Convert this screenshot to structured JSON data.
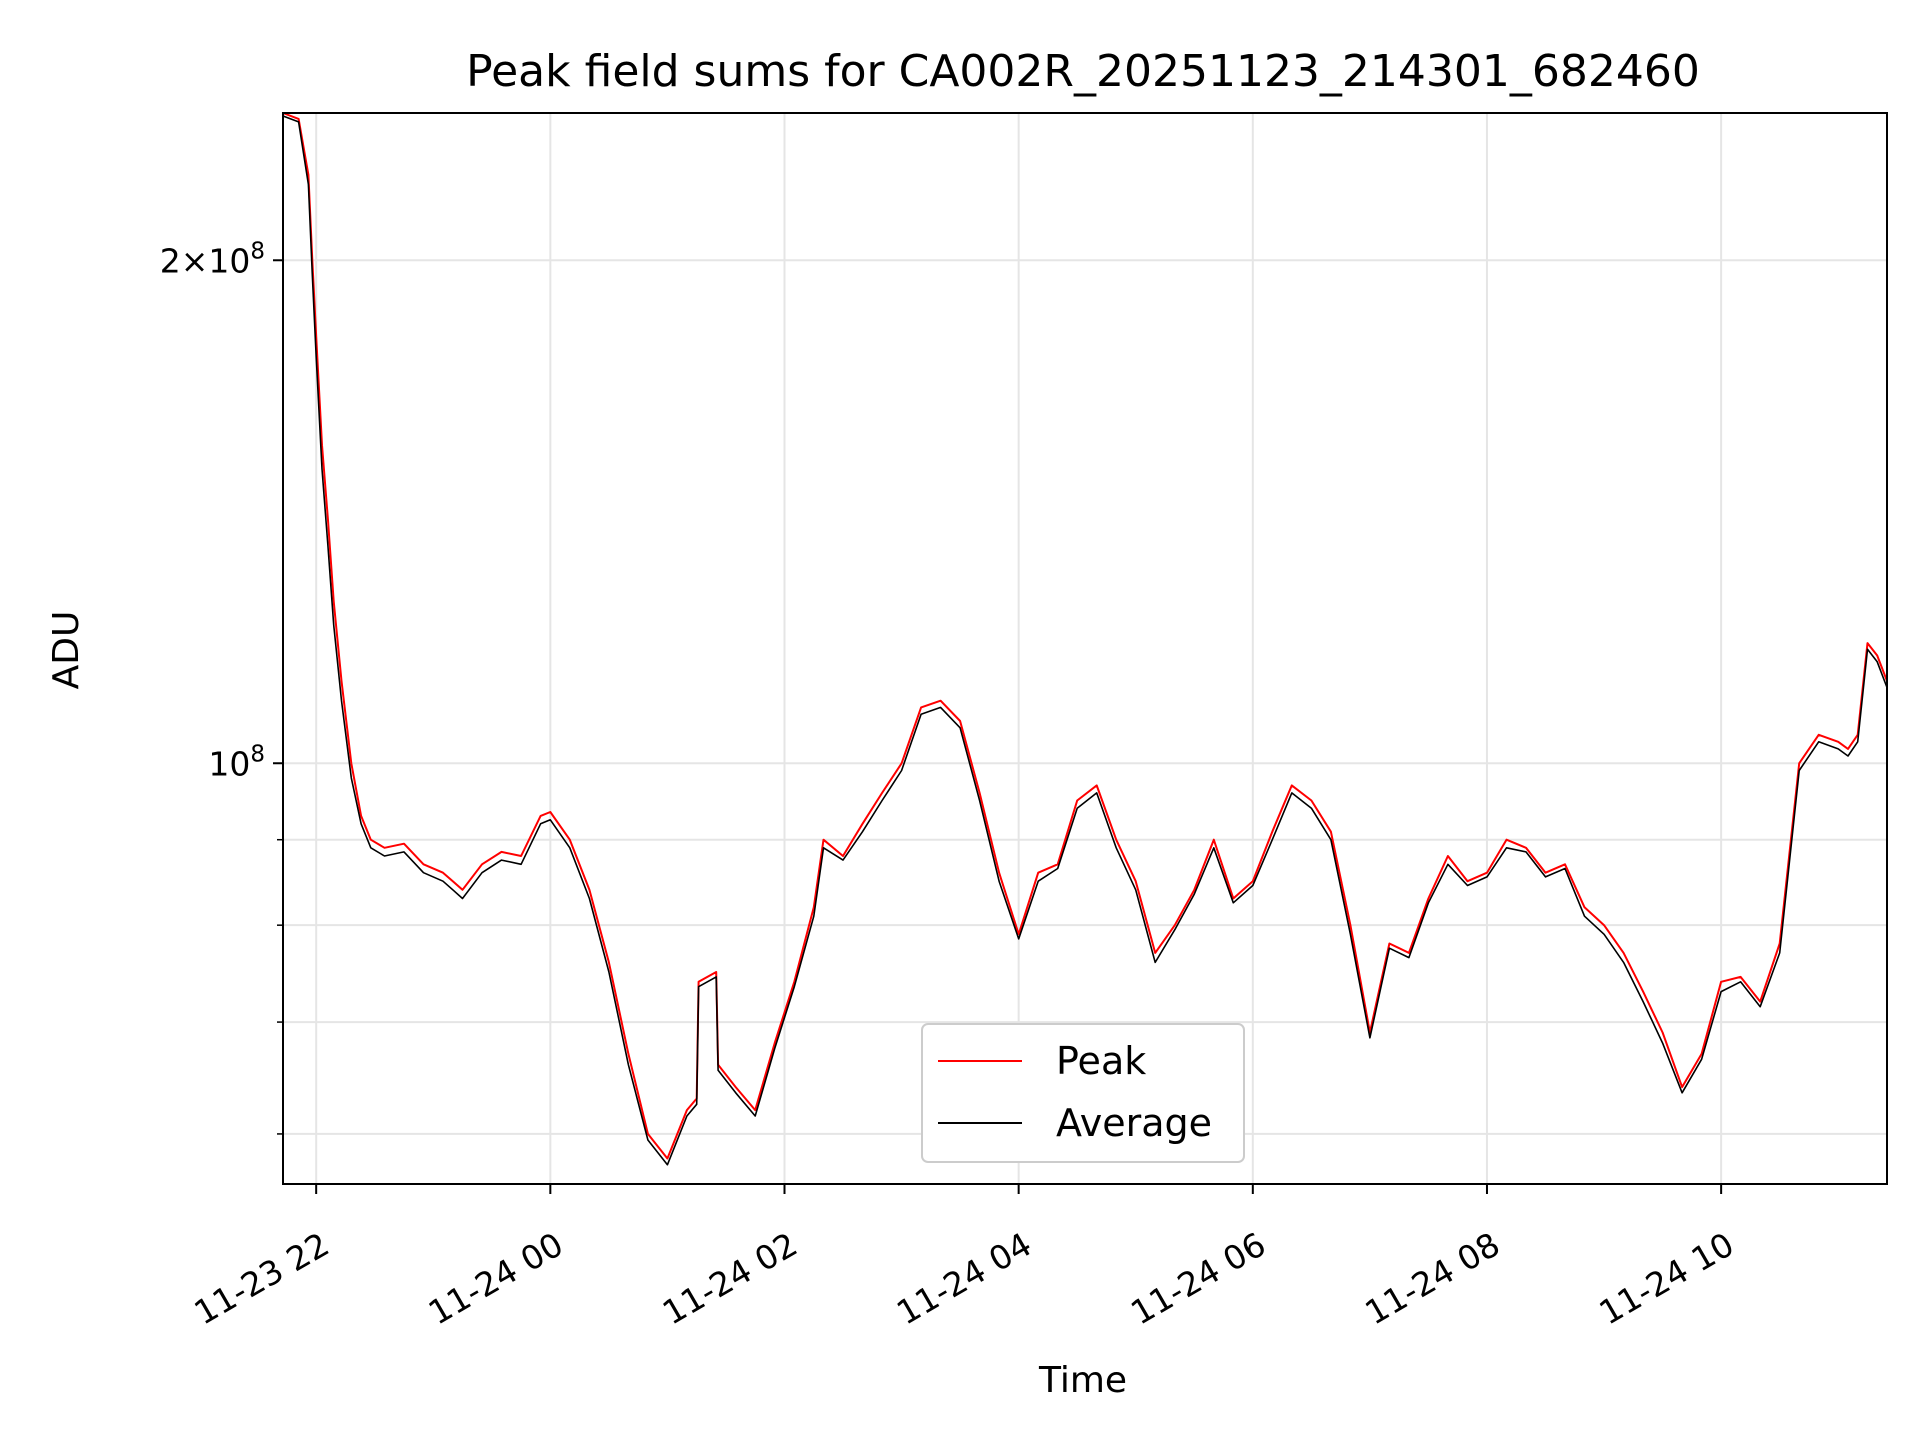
{
  "chart_data": {
    "type": "line",
    "title": "Peak field sums for CA002R_20251123_214301_682460",
    "xlabel": "Time",
    "ylabel": "ADU",
    "y_scale": "log",
    "xlim": [
      "2025-11-23T21:43",
      "2025-11-24T11:25"
    ],
    "ylim": [
      56000000,
      245000000
    ],
    "x_ticks": [
      "11-23 22",
      "11-24 00",
      "11-24 02",
      "11-24 04",
      "11-24 06",
      "11-24 08",
      "11-24 10"
    ],
    "y_ticks": [
      "10^8",
      "2×10^8"
    ],
    "grid": true,
    "legend_position": "lower center",
    "series": [
      {
        "name": "Peak",
        "color": "#ff0000",
        "points": [
          [
            "2025-11-23T21:43",
            245000000
          ],
          [
            "2025-11-23T21:51",
            243000000
          ],
          [
            "2025-11-23T21:56",
            225000000
          ],
          [
            "2025-11-23T21:58",
            200000000
          ],
          [
            "2025-11-23T22:00",
            180000000
          ],
          [
            "2025-11-23T22:03",
            155000000
          ],
          [
            "2025-11-23T22:06",
            140000000
          ],
          [
            "2025-11-23T22:09",
            125000000
          ],
          [
            "2025-11-23T22:13",
            112000000
          ],
          [
            "2025-11-23T22:18",
            100000000
          ],
          [
            "2025-11-23T22:23",
            93000000
          ],
          [
            "2025-11-23T22:28",
            90000000
          ],
          [
            "2025-11-23T22:35",
            89000000
          ],
          [
            "2025-11-23T22:45",
            89500000
          ],
          [
            "2025-11-23T22:55",
            87000000
          ],
          [
            "2025-11-23T23:05",
            86000000
          ],
          [
            "2025-11-23T23:10",
            85000000
          ],
          [
            "2025-11-23T23:15",
            84000000
          ],
          [
            "2025-11-23T23:25",
            87000000
          ],
          [
            "2025-11-23T23:35",
            88500000
          ],
          [
            "2025-11-23T23:45",
            88000000
          ],
          [
            "2025-11-23T23:55",
            93000000
          ],
          [
            "2025-11-24T00:00",
            93500000
          ],
          [
            "2025-11-24T00:10",
            90000000
          ],
          [
            "2025-11-24T00:20",
            84000000
          ],
          [
            "2025-11-24T00:30",
            76000000
          ],
          [
            "2025-11-24T00:40",
            67000000
          ],
          [
            "2025-11-24T00:50",
            60000000
          ],
          [
            "2025-11-24T01:00",
            58000000
          ],
          [
            "2025-11-24T01:10",
            62000000
          ],
          [
            "2025-11-24T01:15",
            63000000
          ],
          [
            "2025-11-24T01:16",
            74000000
          ],
          [
            "2025-11-24T01:25",
            75000000
          ],
          [
            "2025-11-24T01:26",
            66000000
          ],
          [
            "2025-11-24T01:35",
            64000000
          ],
          [
            "2025-11-24T01:45",
            62000000
          ],
          [
            "2025-11-24T01:55",
            68000000
          ],
          [
            "2025-11-24T02:05",
            74000000
          ],
          [
            "2025-11-24T02:15",
            82000000
          ],
          [
            "2025-11-24T02:20",
            90000000
          ],
          [
            "2025-11-24T02:30",
            88000000
          ],
          [
            "2025-11-24T02:40",
            92000000
          ],
          [
            "2025-11-24T02:50",
            96000000
          ],
          [
            "2025-11-24T03:00",
            100000000
          ],
          [
            "2025-11-24T03:10",
            108000000
          ],
          [
            "2025-11-24T03:20",
            109000000
          ],
          [
            "2025-11-24T03:30",
            106000000
          ],
          [
            "2025-11-24T03:40",
            96000000
          ],
          [
            "2025-11-24T03:50",
            86000000
          ],
          [
            "2025-11-24T04:00",
            79000000
          ],
          [
            "2025-11-24T04:10",
            86000000
          ],
          [
            "2025-11-24T04:20",
            87000000
          ],
          [
            "2025-11-24T04:30",
            95000000
          ],
          [
            "2025-11-24T04:40",
            97000000
          ],
          [
            "2025-11-24T04:50",
            90000000
          ],
          [
            "2025-11-24T05:00",
            85000000
          ],
          [
            "2025-11-24T05:10",
            77000000
          ],
          [
            "2025-11-24T05:20",
            80000000
          ],
          [
            "2025-11-24T05:30",
            84000000
          ],
          [
            "2025-11-24T05:40",
            90000000
          ],
          [
            "2025-11-24T05:50",
            83000000
          ],
          [
            "2025-11-24T06:00",
            85000000
          ],
          [
            "2025-11-24T06:10",
            91000000
          ],
          [
            "2025-11-24T06:20",
            97000000
          ],
          [
            "2025-11-24T06:30",
            95000000
          ],
          [
            "2025-11-24T06:40",
            91000000
          ],
          [
            "2025-11-24T06:50",
            80000000
          ],
          [
            "2025-11-24T07:00",
            69000000
          ],
          [
            "2025-11-24T07:10",
            78000000
          ],
          [
            "2025-11-24T07:20",
            77000000
          ],
          [
            "2025-11-24T07:30",
            83000000
          ],
          [
            "2025-11-24T07:40",
            88000000
          ],
          [
            "2025-11-24T07:50",
            85000000
          ],
          [
            "2025-11-24T08:00",
            86000000
          ],
          [
            "2025-11-24T08:10",
            90000000
          ],
          [
            "2025-11-24T08:20",
            89000000
          ],
          [
            "2025-11-24T08:30",
            86000000
          ],
          [
            "2025-11-24T08:40",
            87000000
          ],
          [
            "2025-11-24T08:50",
            82000000
          ],
          [
            "2025-11-24T09:00",
            80000000
          ],
          [
            "2025-11-24T09:10",
            77000000
          ],
          [
            "2025-11-24T09:20",
            73000000
          ],
          [
            "2025-11-24T09:30",
            69000000
          ],
          [
            "2025-11-24T09:40",
            64000000
          ],
          [
            "2025-11-24T09:50",
            67000000
          ],
          [
            "2025-11-24T10:00",
            74000000
          ],
          [
            "2025-11-24T10:10",
            74500000
          ],
          [
            "2025-11-24T10:20",
            72000000
          ],
          [
            "2025-11-24T10:30",
            78000000
          ],
          [
            "2025-11-24T10:40",
            100000000
          ],
          [
            "2025-11-24T10:50",
            104000000
          ],
          [
            "2025-11-24T11:00",
            103000000
          ],
          [
            "2025-11-24T11:05",
            102000000
          ],
          [
            "2025-11-24T11:10",
            104000000
          ],
          [
            "2025-11-24T11:15",
            118000000
          ],
          [
            "2025-11-24T11:20",
            116000000
          ],
          [
            "2025-11-24T11:25",
            112000000
          ]
        ]
      },
      {
        "name": "Average",
        "color": "#000000",
        "points": [
          [
            "2025-11-23T21:43",
            244000000
          ],
          [
            "2025-11-23T21:51",
            242000000
          ],
          [
            "2025-11-23T21:56",
            222000000
          ],
          [
            "2025-11-23T21:58",
            196000000
          ],
          [
            "2025-11-23T22:00",
            175000000
          ],
          [
            "2025-11-23T22:03",
            150000000
          ],
          [
            "2025-11-23T22:06",
            135000000
          ],
          [
            "2025-11-23T22:09",
            121000000
          ],
          [
            "2025-11-23T22:13",
            109000000
          ],
          [
            "2025-11-23T22:18",
            98000000
          ],
          [
            "2025-11-23T22:23",
            92000000
          ],
          [
            "2025-11-23T22:28",
            89000000
          ],
          [
            "2025-11-23T22:35",
            88000000
          ],
          [
            "2025-11-23T22:45",
            88500000
          ],
          [
            "2025-11-23T22:55",
            86000000
          ],
          [
            "2025-11-23T23:05",
            85000000
          ],
          [
            "2025-11-23T23:10",
            84000000
          ],
          [
            "2025-11-23T23:15",
            83000000
          ],
          [
            "2025-11-23T23:25",
            86000000
          ],
          [
            "2025-11-23T23:35",
            87500000
          ],
          [
            "2025-11-23T23:45",
            87000000
          ],
          [
            "2025-11-23T23:55",
            92000000
          ],
          [
            "2025-11-24T00:00",
            92500000
          ],
          [
            "2025-11-24T00:10",
            89000000
          ],
          [
            "2025-11-24T00:20",
            83000000
          ],
          [
            "2025-11-24T00:30",
            75000000
          ],
          [
            "2025-11-24T00:40",
            66000000
          ],
          [
            "2025-11-24T00:50",
            59500000
          ],
          [
            "2025-11-24T01:00",
            57500000
          ],
          [
            "2025-11-24T01:10",
            61500000
          ],
          [
            "2025-11-24T01:15",
            62500000
          ],
          [
            "2025-11-24T01:16",
            73500000
          ],
          [
            "2025-11-24T01:25",
            74500000
          ],
          [
            "2025-11-24T01:26",
            65500000
          ],
          [
            "2025-11-24T01:35",
            63500000
          ],
          [
            "2025-11-24T01:45",
            61500000
          ],
          [
            "2025-11-24T01:55",
            67500000
          ],
          [
            "2025-11-24T02:05",
            73500000
          ],
          [
            "2025-11-24T02:15",
            81000000
          ],
          [
            "2025-11-24T02:20",
            89000000
          ],
          [
            "2025-11-24T02:30",
            87500000
          ],
          [
            "2025-11-24T02:40",
            91000000
          ],
          [
            "2025-11-24T02:50",
            95000000
          ],
          [
            "2025-11-24T03:00",
            99000000
          ],
          [
            "2025-11-24T03:10",
            107000000
          ],
          [
            "2025-11-24T03:20",
            108000000
          ],
          [
            "2025-11-24T03:30",
            105000000
          ],
          [
            "2025-11-24T03:40",
            95000000
          ],
          [
            "2025-11-24T03:50",
            85000000
          ],
          [
            "2025-11-24T04:00",
            78500000
          ],
          [
            "2025-11-24T04:10",
            85000000
          ],
          [
            "2025-11-24T04:20",
            86500000
          ],
          [
            "2025-11-24T04:30",
            94000000
          ],
          [
            "2025-11-24T04:40",
            96000000
          ],
          [
            "2025-11-24T04:50",
            89000000
          ],
          [
            "2025-11-24T05:00",
            84000000
          ],
          [
            "2025-11-24T05:10",
            76000000
          ],
          [
            "2025-11-24T05:20",
            79500000
          ],
          [
            "2025-11-24T05:30",
            83500000
          ],
          [
            "2025-11-24T05:40",
            89000000
          ],
          [
            "2025-11-24T05:50",
            82500000
          ],
          [
            "2025-11-24T06:00",
            84500000
          ],
          [
            "2025-11-24T06:10",
            90000000
          ],
          [
            "2025-11-24T06:20",
            96000000
          ],
          [
            "2025-11-24T06:30",
            94000000
          ],
          [
            "2025-11-24T06:40",
            90000000
          ],
          [
            "2025-11-24T06:50",
            79000000
          ],
          [
            "2025-11-24T07:00",
            68500000
          ],
          [
            "2025-11-24T07:10",
            77500000
          ],
          [
            "2025-11-24T07:20",
            76500000
          ],
          [
            "2025-11-24T07:30",
            82500000
          ],
          [
            "2025-11-24T07:40",
            87000000
          ],
          [
            "2025-11-24T07:50",
            84500000
          ],
          [
            "2025-11-24T08:00",
            85500000
          ],
          [
            "2025-11-24T08:10",
            89000000
          ],
          [
            "2025-11-24T08:20",
            88500000
          ],
          [
            "2025-11-24T08:30",
            85500000
          ],
          [
            "2025-11-24T08:40",
            86500000
          ],
          [
            "2025-11-24T08:50",
            81000000
          ],
          [
            "2025-11-24T09:00",
            79000000
          ],
          [
            "2025-11-24T09:10",
            76000000
          ],
          [
            "2025-11-24T09:20",
            72000000
          ],
          [
            "2025-11-24T09:30",
            68000000
          ],
          [
            "2025-11-24T09:40",
            63500000
          ],
          [
            "2025-11-24T09:50",
            66500000
          ],
          [
            "2025-11-24T10:00",
            73000000
          ],
          [
            "2025-11-24T10:10",
            74000000
          ],
          [
            "2025-11-24T10:20",
            71500000
          ],
          [
            "2025-11-24T10:30",
            77000000
          ],
          [
            "2025-11-24T10:40",
            99000000
          ],
          [
            "2025-11-24T10:50",
            103000000
          ],
          [
            "2025-11-24T11:00",
            102000000
          ],
          [
            "2025-11-24T11:05",
            101000000
          ],
          [
            "2025-11-24T11:10",
            103000000
          ],
          [
            "2025-11-24T11:15",
            117000000
          ],
          [
            "2025-11-24T11:20",
            115000000
          ],
          [
            "2025-11-24T11:25",
            111000000
          ]
        ]
      }
    ]
  }
}
